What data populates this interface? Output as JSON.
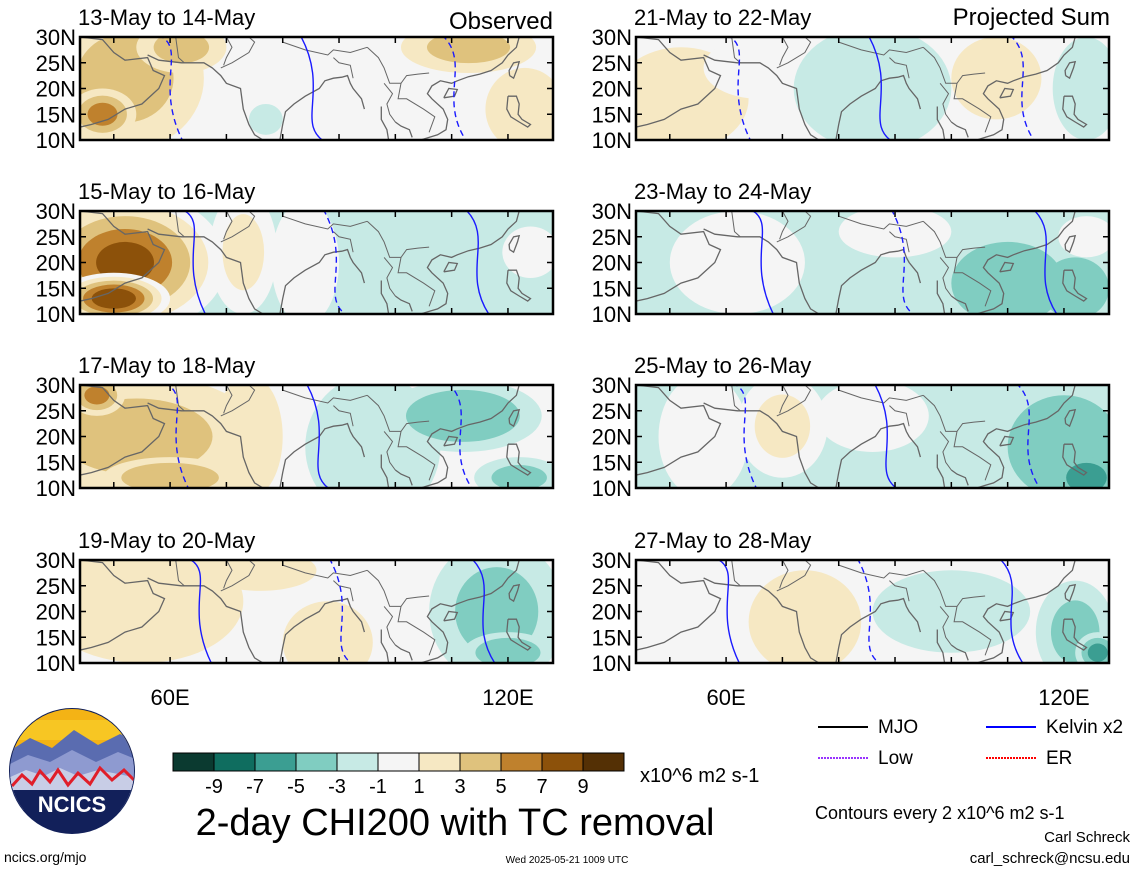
{
  "chart_data": {
    "type": "heatmap",
    "title": "2-day CHI200 with TC removal",
    "units": "x10^6 m2 s-1",
    "contour_note": "Contours every 2 x10^6 m2 s-1",
    "region": {
      "lon_range": [
        44,
        128
      ],
      "lat_range": [
        10,
        30
      ],
      "lat_ticks": [
        "30N",
        "25N",
        "20N",
        "15N",
        "10N"
      ],
      "lat_tick_values": [
        30,
        25,
        20,
        15,
        10
      ],
      "lon_ticks": [
        "60E",
        "120E"
      ],
      "lon_tick_values": [
        60,
        120
      ]
    },
    "column_headers": {
      "left": "Observed",
      "right": "Projected Sum"
    },
    "panels": [
      {
        "title": "13-May to 14-May",
        "column": "left",
        "row": 0,
        "pattern": {
          "background_level": 0.3,
          "blobs": [
            {
              "lon": 52,
              "lat": 22,
              "rx": 14,
              "ry": 14,
              "level": 4
            },
            {
              "lon": 48,
              "lat": 15,
              "rx": 6,
              "ry": 5,
              "level": 5.5
            },
            {
              "lon": 62,
              "lat": 28,
              "rx": 8,
              "ry": 5,
              "level": 3.5
            },
            {
              "lon": 86,
              "lat": 21,
              "rx": 14,
              "ry": 14,
              "level": 0
            },
            {
              "lon": 77,
              "lat": 14,
              "rx": 3,
              "ry": 3,
              "level": -1.8
            },
            {
              "lon": 113,
              "lat": 28,
              "rx": 12,
              "ry": 5,
              "level": 4
            },
            {
              "lon": 123,
              "lat": 16,
              "rx": 7,
              "ry": 8,
              "level": 2
            }
          ]
        }
      },
      {
        "title": "15-May to 16-May",
        "column": "left",
        "row": 1,
        "pattern": {
          "background_level": -1.5,
          "blobs": [
            {
              "lon": 52,
              "lat": 20,
              "rx": 18,
              "ry": 14,
              "level": 7.5
            },
            {
              "lon": 50,
              "lat": 13,
              "rx": 10,
              "ry": 5,
              "level": 9
            },
            {
              "lon": 73,
              "lat": 22,
              "rx": 6,
              "ry": 12,
              "level": 2.5
            },
            {
              "lon": 84,
              "lat": 20,
              "rx": 6,
              "ry": 12,
              "level": 0
            },
            {
              "lon": 124,
              "lat": 22,
              "rx": 5,
              "ry": 5,
              "level": 0
            }
          ]
        }
      },
      {
        "title": "17-May to 18-May",
        "column": "left",
        "row": 2,
        "pattern": {
          "background_level": 0,
          "blobs": [
            {
              "lon": 54,
              "lat": 20,
              "rx": 22,
              "ry": 12,
              "level": 3.5
            },
            {
              "lon": 47,
              "lat": 28,
              "rx": 5,
              "ry": 4,
              "level": 6
            },
            {
              "lon": 60,
              "lat": 12,
              "rx": 12,
              "ry": 4,
              "level": 4.5
            },
            {
              "lon": 74,
              "lat": 20,
              "rx": 6,
              "ry": 12,
              "level": 1.5
            },
            {
              "lon": 96,
              "lat": 18,
              "rx": 12,
              "ry": 14,
              "level": -2
            },
            {
              "lon": 112,
              "lat": 24,
              "rx": 14,
              "ry": 7,
              "level": -4.5
            },
            {
              "lon": 122,
              "lat": 12,
              "rx": 8,
              "ry": 4,
              "level": -3.5
            }
          ]
        }
      },
      {
        "title": "19-May to 20-May",
        "column": "left",
        "row": 3,
        "pattern": {
          "background_level": 0,
          "blobs": [
            {
              "lon": 55,
              "lat": 22,
              "rx": 18,
              "ry": 12,
              "level": 2
            },
            {
              "lon": 76,
              "lat": 28,
              "rx": 10,
              "ry": 4,
              "level": 1.5
            },
            {
              "lon": 88,
              "lat": 14,
              "rx": 8,
              "ry": 8,
              "level": 2
            },
            {
              "lon": 118,
              "lat": 20,
              "rx": 12,
              "ry": 14,
              "level": -3
            },
            {
              "lon": 120,
              "lat": 12,
              "rx": 8,
              "ry": 4,
              "level": -4.5
            }
          ]
        }
      },
      {
        "title": "21-May to 22-May",
        "column": "right",
        "row": 0,
        "pattern": {
          "background_level": 0,
          "blobs": [
            {
              "lon": 52,
              "lat": 18,
              "rx": 12,
              "ry": 10,
              "level": 2.5
            },
            {
              "lon": 66,
              "lat": 24,
              "rx": 10,
              "ry": 6,
              "level": 0
            },
            {
              "lon": 86,
              "lat": 20,
              "rx": 14,
              "ry": 12,
              "level": -2
            },
            {
              "lon": 108,
              "lat": 22,
              "rx": 8,
              "ry": 8,
              "level": 1.5
            },
            {
              "lon": 124,
              "lat": 20,
              "rx": 6,
              "ry": 10,
              "level": -2
            }
          ]
        }
      },
      {
        "title": "23-May to 24-May",
        "column": "right",
        "row": 1,
        "pattern": {
          "background_level": -1.5,
          "blobs": [
            {
              "lon": 62,
              "lat": 20,
              "rx": 12,
              "ry": 10,
              "level": 0
            },
            {
              "lon": 90,
              "lat": 26,
              "rx": 10,
              "ry": 5,
              "level": 0
            },
            {
              "lon": 110,
              "lat": 16,
              "rx": 10,
              "ry": 8,
              "level": -4
            },
            {
              "lon": 122,
              "lat": 15,
              "rx": 6,
              "ry": 6,
              "level": -4
            },
            {
              "lon": 124,
              "lat": 25,
              "rx": 5,
              "ry": 4,
              "level": 0
            }
          ]
        }
      },
      {
        "title": "25-May to 26-May",
        "column": "right",
        "row": 2,
        "pattern": {
          "background_level": -1.5,
          "blobs": [
            {
              "lon": 56,
              "lat": 20,
              "rx": 8,
              "ry": 12,
              "level": 0
            },
            {
              "lon": 70,
              "lat": 22,
              "rx": 8,
              "ry": 10,
              "level": 1.5
            },
            {
              "lon": 86,
              "lat": 24,
              "rx": 10,
              "ry": 7,
              "level": 0
            },
            {
              "lon": 120,
              "lat": 18,
              "rx": 10,
              "ry": 10,
              "level": -4.5
            },
            {
              "lon": 124,
              "lat": 12,
              "rx": 5,
              "ry": 4,
              "level": -6
            }
          ]
        }
      },
      {
        "title": "27-May to 28-May",
        "column": "right",
        "row": 3,
        "pattern": {
          "background_level": -0.5,
          "blobs": [
            {
              "lon": 54,
              "lat": 18,
              "rx": 12,
              "ry": 10,
              "level": 0
            },
            {
              "lon": 74,
              "lat": 18,
              "rx": 10,
              "ry": 10,
              "level": 1.5
            },
            {
              "lon": 100,
              "lat": 20,
              "rx": 14,
              "ry": 8,
              "level": -1.8
            },
            {
              "lon": 122,
              "lat": 16,
              "rx": 7,
              "ry": 10,
              "level": -4.5
            },
            {
              "lon": 126,
              "lat": 12,
              "rx": 4,
              "ry": 4,
              "level": -6
            }
          ]
        }
      }
    ],
    "colorbar": {
      "tick_labels": [
        "-9",
        "-7",
        "-5",
        "-3",
        "-1",
        "1",
        "3",
        "5",
        "7",
        "9"
      ],
      "colors": [
        "#0b3a30",
        "#0f6d5f",
        "#3b9e92",
        "#80cdc1",
        "#c7eae5",
        "#f5f5f5",
        "#f6e8c3",
        "#dfc27d",
        "#bf812d",
        "#8c510a",
        "#543005"
      ]
    },
    "legend": {
      "entries": [
        {
          "label": "MJO",
          "color": "#000000",
          "style": "solid"
        },
        {
          "label": "Kelvin x2",
          "color": "#0000ff",
          "style": "solid"
        },
        {
          "label": "Low",
          "color": "#9933ff",
          "style": "dotted"
        },
        {
          "label": "ER",
          "color": "#ff0000",
          "style": "dotted"
        }
      ]
    },
    "contour_color": "#1a1aff",
    "coast_color": "#666666"
  },
  "branding": {
    "logo_text": "NCICS",
    "url": "ncics.org/mjo",
    "timestamp": "Wed 2025-05-21 1009 UTC",
    "author": "Carl Schreck",
    "email": "carl_schreck@ncsu.edu"
  }
}
